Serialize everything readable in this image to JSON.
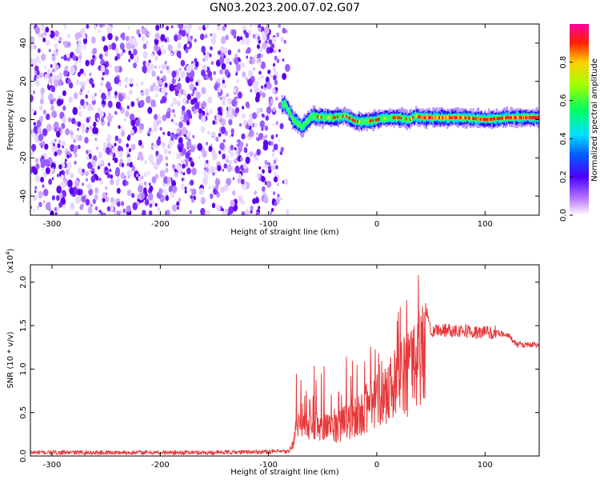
{
  "title": "GN03.2023.200.07.02.G07",
  "chart_data": [
    {
      "type": "heatmap",
      "xlabel": "Height of straight line (km)",
      "ylabel": "Frequency (Hz)",
      "xlim": [
        -320,
        150
      ],
      "ylim": [
        -50,
        50
      ],
      "xticks": [
        -300,
        -200,
        -100,
        0,
        100
      ],
      "yticks": [
        -40,
        -20,
        0,
        20,
        40
      ],
      "noise_region_x": [
        -320,
        -82
      ],
      "signal_center": {
        "x": [
          -85,
          -78,
          -70,
          -60,
          -50,
          -40,
          -30,
          -20,
          -10,
          0,
          10,
          20,
          30,
          35,
          40,
          60,
          80,
          100,
          120,
          150
        ],
        "y": [
          8,
          0,
          -4,
          2,
          1,
          1,
          2,
          -1,
          -1,
          0,
          1,
          1,
          0,
          2,
          1,
          1,
          1,
          0,
          1,
          1
        ]
      },
      "colorbar": {
        "label": "Normalized spectral amplitude",
        "range": [
          0.0,
          1.0
        ],
        "ticks": [
          0.0,
          0.2,
          0.4,
          0.6,
          0.8
        ]
      }
    },
    {
      "type": "line",
      "xlabel": "Height of straight line (km)",
      "ylabel": "SNR (10 * v/v)",
      "scale_label": "(x10",
      "scale_exp": "4",
      "scale_close": ")",
      "xlim": [
        -320,
        150
      ],
      "ylim": [
        0,
        2.2
      ],
      "xticks": [
        -300,
        -200,
        -100,
        0,
        100
      ],
      "yticks": [
        0.0,
        0.5,
        1.0,
        1.5,
        2.0
      ],
      "color": "#e8383a",
      "series": [
        {
          "x": [
            -320,
            -250,
            -200,
            -150,
            -100,
            -80,
            -75,
            -70,
            -60,
            -50,
            -40,
            -30,
            -20,
            -10,
            0,
            10,
            20,
            30,
            40,
            45,
            50,
            60,
            70,
            80,
            90,
            100,
            110,
            120,
            130,
            150
          ],
          "y": [
            0.04,
            0.04,
            0.04,
            0.04,
            0.05,
            0.05,
            0.35,
            0.55,
            0.4,
            0.45,
            0.4,
            0.5,
            0.6,
            0.75,
            0.9,
            1.0,
            1.1,
            1.3,
            1.5,
            1.7,
            1.45,
            1.45,
            1.45,
            1.45,
            1.42,
            1.42,
            1.42,
            1.4,
            1.28,
            1.28
          ]
        }
      ]
    }
  ]
}
